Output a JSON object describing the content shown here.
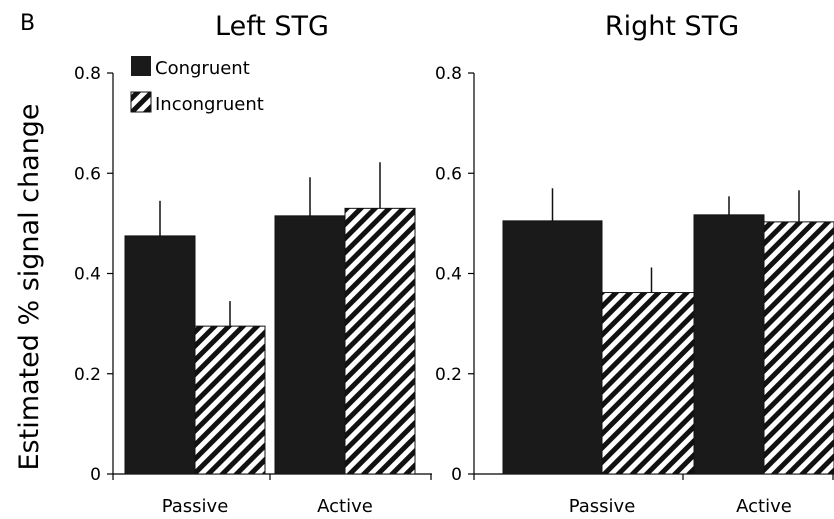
{
  "figure": {
    "panel_letter": "B",
    "ylabel": "Estimated % signal change"
  },
  "legend": [
    {
      "label": "Congruent",
      "pattern": "solid"
    },
    {
      "label": "Incongruent",
      "pattern": "hatched"
    }
  ],
  "colors": {
    "bar_fill": "#1a1a1a",
    "hatch": "#111111",
    "axis": "#000000",
    "background": "#ffffff"
  },
  "chart_data": [
    {
      "type": "bar",
      "title": "Left STG",
      "categories": [
        "Passive",
        "Active"
      ],
      "series": [
        {
          "name": "Congruent",
          "values": [
            0.475,
            0.515
          ],
          "errors": [
            0.07,
            0.077
          ]
        },
        {
          "name": "Incongruent",
          "values": [
            0.295,
            0.53
          ],
          "errors": [
            0.05,
            0.092
          ]
        }
      ],
      "ylim": [
        0,
        0.8
      ],
      "yticks": [
        "0",
        "0.2",
        "0.4",
        "0.6",
        "0.8"
      ],
      "xlabel": "",
      "ylabel": "Estimated % signal change",
      "grid": false,
      "legend_position": "top-left"
    },
    {
      "type": "bar",
      "title": "Right STG",
      "categories": [
        "Passive",
        "Active"
      ],
      "series": [
        {
          "name": "Congruent",
          "values": [
            0.505,
            0.517
          ],
          "errors": [
            0.065,
            0.037
          ]
        },
        {
          "name": "Incongruent",
          "values": [
            0.362,
            0.503
          ],
          "errors": [
            0.05,
            0.063
          ]
        }
      ],
      "ylim": [
        0,
        0.8
      ],
      "yticks": [
        "0",
        "0.2",
        "0.4",
        "0.6",
        "0.8"
      ],
      "xlabel": "",
      "ylabel": "",
      "grid": false,
      "legend_position": "none"
    }
  ]
}
